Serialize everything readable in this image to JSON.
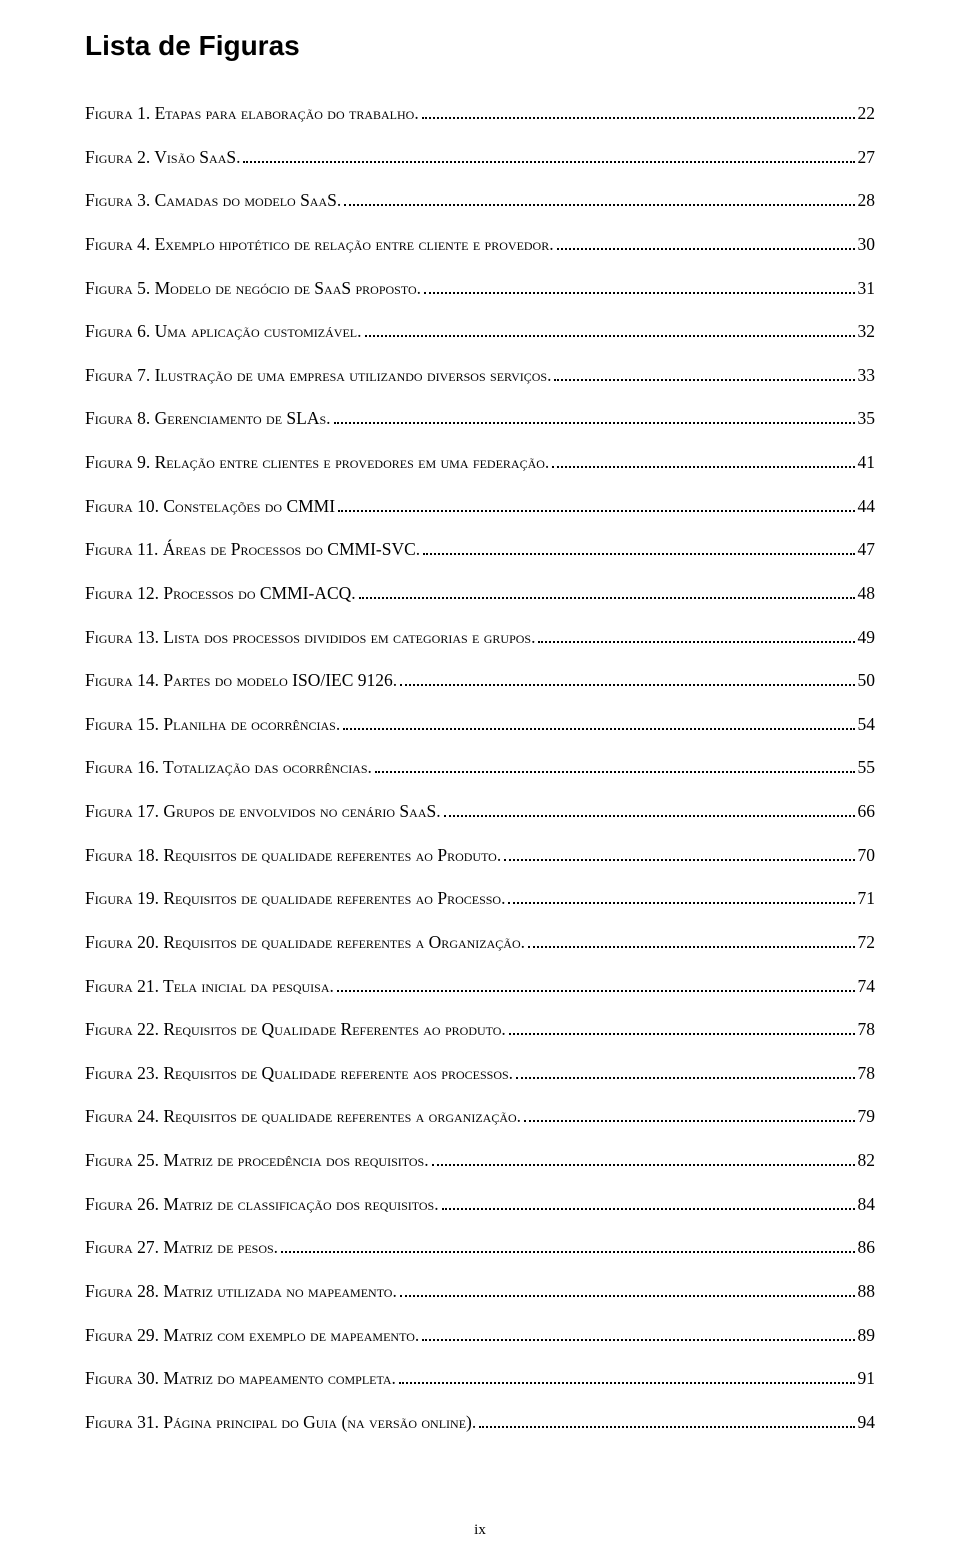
{
  "title": "Lista de Figuras",
  "page_number": "ix",
  "colors": {
    "text": "#000000",
    "background": "#ffffff"
  },
  "typography": {
    "title_family": "Arial",
    "title_size_pt": 22,
    "title_weight": "bold",
    "body_family": "Times New Roman",
    "body_size_pt": 13,
    "entry_variant": "small-caps"
  },
  "entries": [
    {
      "label": "Figura 1. Etapas para elaboração do trabalho.",
      "page": "22"
    },
    {
      "label": "Figura 2. Visão SaaS.",
      "page": "27"
    },
    {
      "label": "Figura 3. Camadas do modelo SaaS.",
      "page": "28"
    },
    {
      "label": "Figura 4. Exemplo hipotético de relação entre cliente e provedor.",
      "page": "30"
    },
    {
      "label": "Figura 5. Modelo de negócio de SaaS proposto.",
      "page": "31"
    },
    {
      "label": "Figura 6. Uma aplicação customizável.",
      "page": "32"
    },
    {
      "label": "Figura 7. Ilustração de uma empresa utilizando diversos serviços.",
      "page": "33"
    },
    {
      "label": "Figura 8. Gerenciamento de SLAs.",
      "page": "35"
    },
    {
      "label": "Figura 9. Relação entre clientes e provedores em uma federação.",
      "page": "41"
    },
    {
      "label": "Figura 10. Constelações do CMMI",
      "page": "44"
    },
    {
      "label": "Figura 11. Áreas de Processos do CMMI-SVC.",
      "page": "47"
    },
    {
      "label": "Figura 12. Processos do CMMI-ACQ.",
      "page": "48"
    },
    {
      "label": "Figura 13. Lista dos processos divididos em categorias e grupos.",
      "page": "49"
    },
    {
      "label": "Figura 14. Partes do modelo ISO/IEC 9126.",
      "page": "50"
    },
    {
      "label": "Figura 15. Planilha de ocorrências.",
      "page": "54"
    },
    {
      "label": "Figura 16. Totalização das ocorrências.",
      "page": "55"
    },
    {
      "label": "Figura 17. Grupos de envolvidos no cenário SaaS.",
      "page": "66"
    },
    {
      "label": "Figura 18. Requisitos de qualidade referentes ao Produto.",
      "page": "70"
    },
    {
      "label": "Figura 19. Requisitos de qualidade referentes ao Processo.",
      "page": "71"
    },
    {
      "label": "Figura 20. Requisitos de qualidade referentes a Organização.",
      "page": "72"
    },
    {
      "label": "Figura 21. Tela inicial da pesquisa.",
      "page": "74"
    },
    {
      "label": "Figura 22. Requisitos de Qualidade Referentes ao produto.",
      "page": "78"
    },
    {
      "label": "Figura 23. Requisitos de Qualidade referente aos processos.",
      "page": "78"
    },
    {
      "label": "Figura 24. Requisitos de qualidade referentes a organização.",
      "page": "79"
    },
    {
      "label": "Figura 25. Matriz de procedência dos requisitos.",
      "page": "82"
    },
    {
      "label": "Figura 26. Matriz de classificação dos requisitos.",
      "page": "84"
    },
    {
      "label": "Figura 27. Matriz de pesos.",
      "page": "86"
    },
    {
      "label": "Figura 28. Matriz utilizada no mapeamento.",
      "page": "88"
    },
    {
      "label": "Figura 29. Matriz com exemplo de mapeamento.",
      "page": "89"
    },
    {
      "label": "Figura 30. Matriz do mapeamento completa.",
      "page": "91"
    },
    {
      "label": "Figura 31. Página principal do Guia (na versão online).",
      "page": "94"
    }
  ]
}
